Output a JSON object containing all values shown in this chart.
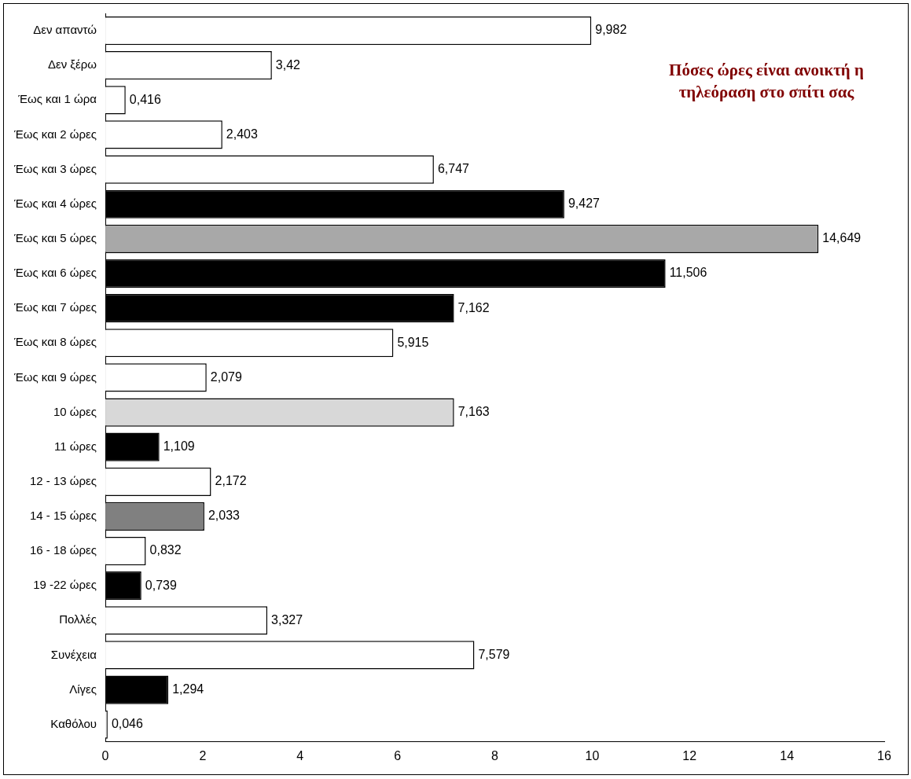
{
  "chart_data": {
    "type": "bar",
    "orientation": "horizontal",
    "title": "Πόσες ώρες είναι ανοικτή η τηλεόραση στο σπίτι σας",
    "categories": [
      "Δεν απαντώ",
      "Δεν ξέρω",
      "Έως και 1 ώρα",
      "Έως και 2 ώρες",
      "Έως και 3 ώρες",
      "Έως και 4 ώρες",
      "Έως και 5 ώρες",
      "Έως και 6 ώρες",
      "Έως και 7 ώρες",
      "Έως και 8 ώρες",
      "Έως και 9 ώρες",
      "10 ώρες",
      "11 ώρες",
      "12 - 13 ώρες",
      "14 - 15 ώρες",
      "16 - 18 ώρες",
      "19 -22 ώρες",
      "Πολλές",
      "Συνέχεια",
      "Λίγες",
      "Καθόλου"
    ],
    "values": [
      9.982,
      3.42,
      0.416,
      2.403,
      6.747,
      9.427,
      14.649,
      11.506,
      7.162,
      5.915,
      2.079,
      7.163,
      1.109,
      2.172,
      2.033,
      0.832,
      0.739,
      3.327,
      7.579,
      1.294,
      0.046
    ],
    "colors": [
      "#ffffff",
      "#ffffff",
      "#ffffff",
      "#ffffff",
      "#ffffff",
      "#000000",
      "#a8a8a8",
      "#000000",
      "#000000",
      "#ffffff",
      "#ffffff",
      "#d8d8d8",
      "#000000",
      "#ffffff",
      "#808080",
      "#ffffff",
      "#000000",
      "#ffffff",
      "#ffffff",
      "#000000",
      "#ffffff"
    ],
    "value_labels": [
      "9,982",
      "3,42",
      "0,416",
      "2,403",
      "6,747",
      "9,427",
      "14,649",
      "11,506",
      "7,162",
      "5,915",
      "2,079",
      "7,163",
      "1,109",
      "2,172",
      "2,033",
      "0,832",
      "0,739",
      "3,327",
      "7,579",
      "1,294",
      "0,046"
    ],
    "xlim": [
      0,
      16
    ],
    "xticks": [
      0,
      2,
      4,
      6,
      8,
      10,
      12,
      14,
      16
    ],
    "grid": false,
    "legend": false
  }
}
